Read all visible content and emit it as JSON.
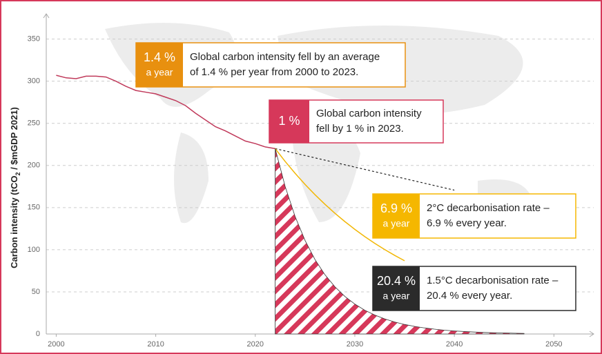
{
  "chart_data": {
    "type": "line",
    "y_label_parts": [
      "Carbon intensity (tCO",
      "2",
      " / $mGDP 2021)"
    ],
    "xlim": [
      1999,
      2054
    ],
    "xticks": [
      2000,
      2010,
      2020,
      2030,
      2040,
      2050
    ],
    "ylim": [
      0,
      380
    ],
    "yticks": [
      0,
      50,
      100,
      150,
      200,
      250,
      300,
      350
    ],
    "grid": true,
    "series": [
      {
        "color": "#c0395a",
        "style": "solid",
        "x": [
          2000,
          2001,
          2002,
          2003,
          2004,
          2005,
          2006,
          2007,
          2008,
          2009,
          2010,
          2011,
          2012,
          2013,
          2014,
          2015,
          2016,
          2017,
          2018,
          2019,
          2020,
          2021,
          2022
        ],
        "values": [
          307,
          304,
          303,
          306,
          306,
          305,
          300,
          294,
          289,
          287,
          285,
          281,
          277,
          271,
          262,
          254,
          246,
          241,
          235,
          229,
          226,
          222,
          220
        ]
      },
      {
        "color": "#222222",
        "style": "dotted",
        "x": [
          2022,
          2040
        ],
        "values": [
          220,
          170.7
        ]
      },
      {
        "color": "#f2b705",
        "style": "solid",
        "x": [
          2022,
          2023,
          2024,
          2025,
          2026,
          2027,
          2028,
          2029,
          2030,
          2031,
          2032,
          2033,
          2034,
          2035
        ],
        "values": [
          220,
          204.8,
          190.7,
          177.5,
          165.3,
          153.9,
          143.3,
          133.4,
          124.2,
          115.6,
          107.6,
          100.2,
          93.3,
          86.9
        ]
      },
      {
        "color": "#d6385a",
        "style": "hatched",
        "x": [
          2022,
          2023,
          2024,
          2025,
          2026,
          2027,
          2028,
          2029,
          2030,
          2031,
          2032,
          2033,
          2034,
          2035,
          2036,
          2037,
          2038,
          2039,
          2040,
          2041,
          2042,
          2043,
          2044,
          2045,
          2046,
          2047
        ],
        "values": [
          220,
          175.1,
          139.4,
          111.0,
          88.3,
          70.3,
          56.0,
          44.6,
          35.5,
          28.2,
          22.5,
          17.9,
          14.2,
          11.3,
          9.0,
          7.2,
          5.7,
          4.5,
          3.6,
          2.9,
          2.3,
          1.8,
          1.4,
          1.2,
          0.9,
          0.7
        ]
      }
    ],
    "annotations": [
      {
        "badge": [
          "1.4 %",
          "a year"
        ],
        "text": [
          "Global carbon intensity fell by an average",
          "of 1.4 % per year from 2000 to 2023."
        ],
        "color": "#e8900f"
      },
      {
        "badge": [
          "1 %"
        ],
        "text": [
          "Global carbon intensity",
          "fell by 1 % in 2023."
        ],
        "color": "#d6385a"
      },
      {
        "badge": [
          "6.9 %",
          "a year"
        ],
        "text": [
          "2°C decarbonisation rate –",
          "6.9 % every year."
        ],
        "color": "#f5b700"
      },
      {
        "badge": [
          "20.4 %",
          "a year"
        ],
        "text": [
          "1.5°C decarbonisation rate –",
          "20.4 % every year."
        ],
        "color": "#2b2b2b"
      }
    ]
  }
}
